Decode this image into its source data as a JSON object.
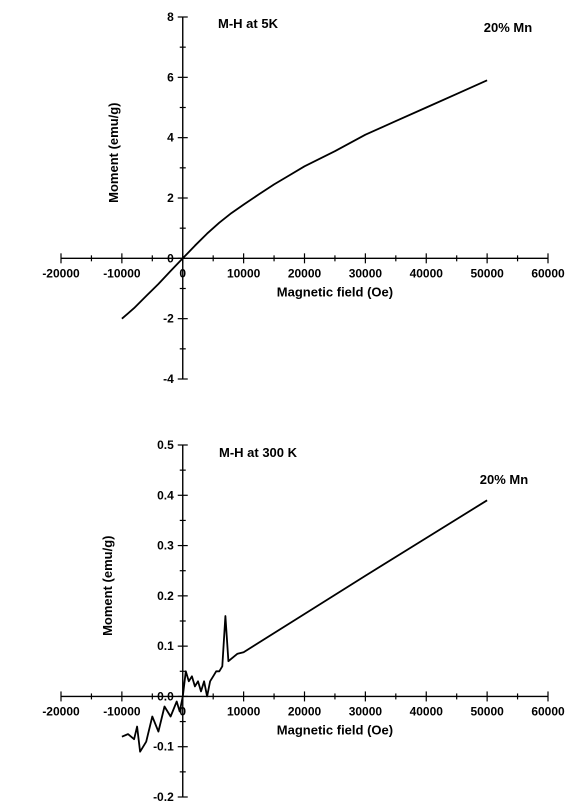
{
  "chart_data": [
    {
      "type": "line",
      "title": "",
      "xlabel": "Magnetic field (Oe)",
      "ylabel": "Moment (emu/g)",
      "xlim": [
        -20000,
        60000
      ],
      "ylim": [
        -4,
        8
      ],
      "xticks": [
        -20000,
        -10000,
        0,
        10000,
        20000,
        30000,
        40000,
        50000,
        60000
      ],
      "xtick_labels": [
        "-20000",
        "-10000",
        "0",
        "10000",
        "20000",
        "30000",
        "40000",
        "50000",
        "60000"
      ],
      "yticks": [
        -4,
        -2,
        0,
        2,
        4,
        6,
        8
      ],
      "ytick_labels": [
        "-4",
        "-2",
        "0",
        "2",
        "4",
        "6",
        "8"
      ],
      "annotations": [
        "M-H at 5K",
        "20% Mn"
      ],
      "grid": false,
      "legend": "none",
      "series": [
        {
          "x": [
            -10000,
            -8000,
            -6000,
            -4000,
            -2000,
            0,
            2000,
            4000,
            6000,
            8000,
            10000,
            12500,
            15000,
            17500,
            20000,
            25000,
            30000,
            35000,
            40000,
            45000,
            50000
          ],
          "y": [
            -2.0,
            -1.65,
            -1.25,
            -0.85,
            -0.42,
            0.0,
            0.42,
            0.82,
            1.18,
            1.5,
            1.78,
            2.12,
            2.45,
            2.75,
            3.05,
            3.55,
            4.1,
            4.55,
            5.0,
            5.45,
            5.9
          ]
        }
      ]
    },
    {
      "type": "line",
      "title": "",
      "xlabel": "Magnetic field (Oe)",
      "ylabel": "Moment (emu/g)",
      "xlim": [
        -20000,
        60000
      ],
      "ylim": [
        -0.2,
        0.5
      ],
      "xticks": [
        -20000,
        -10000,
        0,
        10000,
        20000,
        30000,
        40000,
        50000,
        60000
      ],
      "xtick_labels": [
        "-20000",
        "-10000",
        "0",
        "10000",
        "20000",
        "30000",
        "40000",
        "50000",
        "60000"
      ],
      "yticks": [
        -0.2,
        -0.1,
        0.0,
        0.1,
        0.2,
        0.3,
        0.4,
        0.5
      ],
      "ytick_labels": [
        "-0.2",
        "-0.1",
        "0.0",
        "0.1",
        "0.2",
        "0.3",
        "0.4",
        "0.5"
      ],
      "annotations": [
        "M-H at 300 K",
        "20% Mn"
      ],
      "grid": false,
      "legend": "none",
      "series": [
        {
          "x": [
            -10000,
            -9000,
            -8000,
            -7500,
            -7000,
            -6000,
            -5000,
            -4000,
            -3000,
            -2000,
            -1000,
            -500,
            0,
            500,
            1000,
            1500,
            2000,
            2500,
            3000,
            3500,
            4000,
            4500,
            5000,
            5500,
            6000,
            6500,
            7000,
            7500,
            8000,
            9000,
            10000,
            20000,
            30000,
            40000,
            50000
          ],
          "y": [
            -0.08,
            -0.075,
            -0.085,
            -0.06,
            -0.11,
            -0.09,
            -0.04,
            -0.07,
            -0.02,
            -0.04,
            -0.01,
            -0.03,
            0.0,
            0.05,
            0.03,
            0.04,
            0.02,
            0.03,
            0.01,
            0.03,
            0.0,
            0.03,
            0.04,
            0.05,
            0.05,
            0.06,
            0.16,
            0.07,
            0.075,
            0.085,
            0.088,
            0.164,
            0.24,
            0.315,
            0.39
          ]
        }
      ]
    }
  ]
}
